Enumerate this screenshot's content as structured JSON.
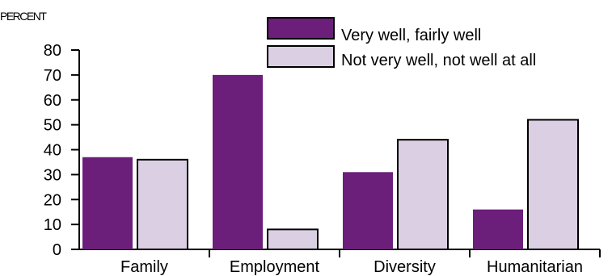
{
  "chart_data": {
    "type": "bar",
    "ylabel": "PERCENT",
    "categories": [
      "Family",
      "Employment",
      "Diversity",
      "Humanitarian"
    ],
    "series": [
      {
        "name": "Very well, fairly well",
        "values": [
          37,
          70,
          31,
          16
        ]
      },
      {
        "name": "Not very well, not well at all",
        "values": [
          36,
          8,
          44,
          52
        ]
      }
    ],
    "ylim": [
      0,
      80
    ],
    "yticks": [
      0,
      10,
      20,
      30,
      40,
      50,
      60,
      70,
      80
    ],
    "grid": false,
    "legend_position": "top-right",
    "colors": {
      "series_1": "#6b1e7a",
      "series_2": "#dbcfe3",
      "stroke": "#000000"
    }
  }
}
